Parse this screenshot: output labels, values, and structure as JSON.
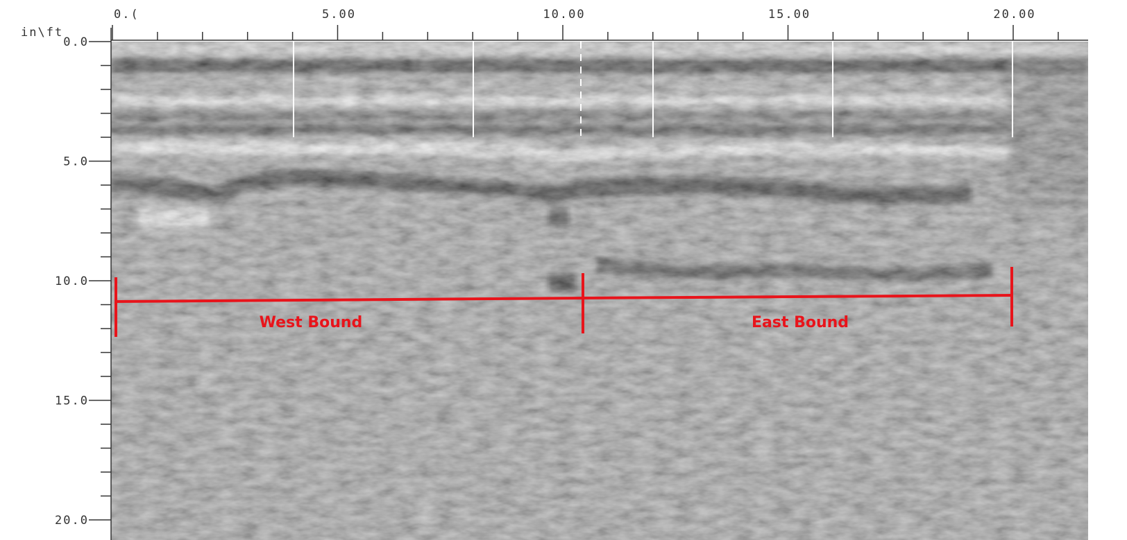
{
  "corner_label": "in\\ft",
  "x_axis": {
    "labels": [
      "0.(",
      "5.00",
      "10.00",
      "15.00",
      "20.00"
    ]
  },
  "y_axis": {
    "labels": [
      "0.0",
      "5.0",
      "10.0",
      "15.0",
      "20.0"
    ]
  },
  "annotations": [
    "West Bound",
    "East Bound"
  ]
}
